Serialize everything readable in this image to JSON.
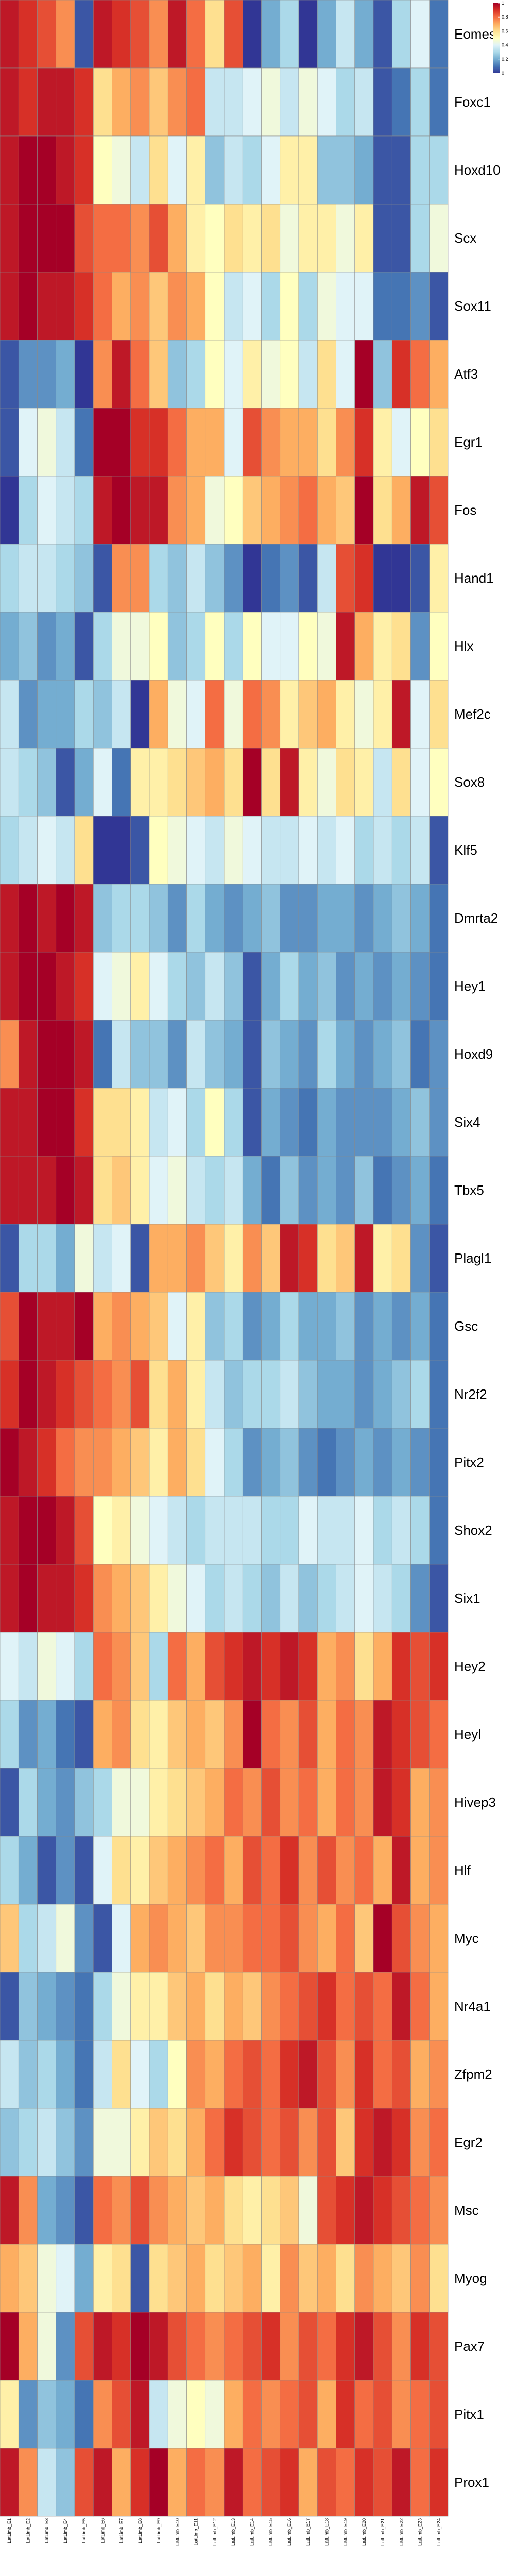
{
  "chart_data": {
    "type": "heatmap",
    "title": "",
    "xlabel": "",
    "ylabel": "",
    "color_scale": {
      "min": 0,
      "max": 1,
      "ticks": [
        0,
        0.2,
        0.4,
        0.6,
        0.8,
        1
      ],
      "colors": [
        "#313695",
        "#4575b4",
        "#74add1",
        "#abd9e9",
        "#e0f3f8",
        "#ffffbf",
        "#fee090",
        "#fdae61",
        "#f46d43",
        "#d73027",
        "#a50026"
      ]
    },
    "columns": [
      "LatLimb_E1",
      "LatLimb_E2",
      "LatLimb_E3",
      "LatLimb_E4",
      "LatLimb_E5",
      "LatLimb_E6",
      "LatLimb_E7",
      "LatLimb_E8",
      "LatLimb_E9",
      "LatLimb_E10",
      "LatLimb_E11",
      "LatLimb_E12",
      "LatLimb_E13",
      "LatLimb_E14",
      "LatLimb_E15",
      "LatLimb_E16",
      "LatLimb_E17",
      "LatLimb_E18",
      "LatLimb_E19",
      "LatLimb_E20",
      "LatLimb_E21",
      "LatLimb_E22",
      "LatLimb_E23",
      "LatLimb_E24"
    ],
    "rows": [
      "Eomes",
      "Foxc1",
      "Hoxd10",
      "Scx",
      "Sox11",
      "Atf3",
      "Egr1",
      "Fos",
      "Hand1",
      "Hlx",
      "Mef2c",
      "Sox8",
      "Klf5",
      "Dmrta2",
      "Hey1",
      "Hoxd9",
      "Six4",
      "Tbx5",
      "Plagl1",
      "Gsc",
      "Nr2f2",
      "Pitx2",
      "Shox2",
      "Six1",
      "Hey2",
      "Heyl",
      "Hivep3",
      "Hlf",
      "Myc",
      "Nr4a1",
      "Zfpm2",
      "Egr2",
      "Msc",
      "Myog",
      "Pax7",
      "Pitx1",
      "Prox1"
    ],
    "values": [
      [
        0.95,
        0.9,
        0.85,
        0.75,
        0.05,
        0.95,
        0.9,
        0.85,
        0.75,
        0.95,
        0.8,
        0.6,
        0.85,
        0.0,
        0.2,
        0.3,
        0.0,
        0.2,
        0.35,
        0.2,
        0.05,
        0.3,
        0.4,
        0.1
      ],
      [
        0.95,
        0.9,
        0.95,
        0.95,
        0.9,
        0.6,
        0.7,
        0.75,
        0.65,
        0.75,
        0.8,
        0.35,
        0.35,
        0.4,
        0.45,
        0.35,
        0.45,
        0.4,
        0.3,
        0.35,
        0.05,
        0.1,
        0.3,
        0.1
      ],
      [
        0.95,
        1.0,
        1.0,
        0.95,
        0.9,
        0.5,
        0.45,
        0.35,
        0.6,
        0.4,
        0.55,
        0.25,
        0.35,
        0.3,
        0.4,
        0.55,
        0.55,
        0.25,
        0.25,
        0.2,
        0.05,
        0.05,
        0.3,
        0.3
      ],
      [
        0.95,
        1.0,
        1.0,
        1.0,
        0.85,
        0.8,
        0.8,
        0.75,
        0.85,
        0.7,
        0.55,
        0.5,
        0.6,
        0.55,
        0.6,
        0.45,
        0.55,
        0.55,
        0.45,
        0.55,
        0.05,
        0.05,
        0.3,
        0.45
      ],
      [
        0.95,
        1.0,
        0.95,
        0.95,
        0.9,
        0.8,
        0.7,
        0.75,
        0.65,
        0.75,
        0.7,
        0.5,
        0.35,
        0.4,
        0.3,
        0.5,
        0.3,
        0.45,
        0.4,
        0.4,
        0.1,
        0.1,
        0.15,
        0.05
      ],
      [
        0.05,
        0.15,
        0.15,
        0.2,
        0.0,
        0.75,
        0.95,
        0.8,
        0.65,
        0.25,
        0.3,
        0.5,
        0.4,
        0.55,
        0.45,
        0.5,
        0.35,
        0.6,
        0.4,
        1.0,
        0.25,
        0.9,
        0.8,
        0.7
      ],
      [
        0.05,
        0.4,
        0.45,
        0.35,
        0.1,
        1.0,
        1.0,
        0.9,
        0.9,
        0.8,
        0.7,
        0.7,
        0.4,
        0.85,
        0.75,
        0.7,
        0.7,
        0.6,
        0.75,
        0.9,
        0.55,
        0.4,
        0.5,
        0.6
      ],
      [
        0.0,
        0.3,
        0.4,
        0.35,
        0.3,
        0.95,
        1.0,
        0.95,
        0.95,
        0.75,
        0.7,
        0.45,
        0.5,
        0.65,
        0.7,
        0.75,
        0.8,
        0.7,
        0.65,
        1.0,
        0.6,
        0.7,
        0.95,
        0.85
      ],
      [
        0.3,
        0.35,
        0.35,
        0.3,
        0.25,
        0.05,
        0.75,
        0.75,
        0.3,
        0.25,
        0.35,
        0.25,
        0.15,
        0.0,
        0.1,
        0.15,
        0.05,
        0.35,
        0.85,
        0.9,
        0.0,
        0.0,
        0.05,
        0.55
      ],
      [
        0.2,
        0.25,
        0.15,
        0.2,
        0.05,
        0.3,
        0.45,
        0.45,
        0.5,
        0.25,
        0.3,
        0.5,
        0.3,
        0.5,
        0.4,
        0.4,
        0.5,
        0.45,
        0.95,
        0.7,
        0.55,
        0.6,
        0.15,
        0.5
      ],
      [
        0.35,
        0.15,
        0.2,
        0.2,
        0.3,
        0.25,
        0.35,
        0.0,
        0.7,
        0.45,
        0.4,
        0.8,
        0.45,
        0.8,
        0.75,
        0.55,
        0.65,
        0.7,
        0.55,
        0.45,
        0.55,
        0.95,
        0.4,
        0.6
      ],
      [
        0.35,
        0.3,
        0.25,
        0.05,
        0.2,
        0.4,
        0.1,
        0.55,
        0.55,
        0.6,
        0.65,
        0.7,
        0.6,
        1.0,
        0.6,
        0.95,
        0.55,
        0.45,
        0.6,
        0.55,
        0.35,
        0.6,
        0.4,
        0.5
      ],
      [
        0.3,
        0.35,
        0.4,
        0.35,
        0.6,
        0.0,
        0.0,
        0.05,
        0.5,
        0.45,
        0.4,
        0.35,
        0.45,
        0.4,
        0.35,
        0.35,
        0.4,
        0.35,
        0.4,
        0.3,
        0.35,
        0.3,
        0.35,
        0.05
      ],
      [
        0.95,
        1.0,
        0.95,
        1.0,
        0.95,
        0.25,
        0.3,
        0.3,
        0.25,
        0.15,
        0.3,
        0.2,
        0.15,
        0.2,
        0.25,
        0.15,
        0.15,
        0.2,
        0.2,
        0.15,
        0.2,
        0.25,
        0.2,
        0.1
      ],
      [
        0.95,
        1.0,
        1.0,
        0.95,
        0.9,
        0.4,
        0.45,
        0.55,
        0.4,
        0.3,
        0.25,
        0.35,
        0.25,
        0.05,
        0.2,
        0.3,
        0.2,
        0.25,
        0.15,
        0.2,
        0.15,
        0.2,
        0.15,
        0.1
      ],
      [
        0.75,
        0.95,
        1.0,
        1.0,
        0.95,
        0.1,
        0.35,
        0.25,
        0.25,
        0.15,
        0.35,
        0.25,
        0.2,
        0.05,
        0.25,
        0.2,
        0.15,
        0.3,
        0.2,
        0.15,
        0.2,
        0.25,
        0.1,
        0.15
      ],
      [
        0.95,
        0.95,
        1.0,
        1.0,
        0.9,
        0.6,
        0.6,
        0.55,
        0.35,
        0.4,
        0.3,
        0.5,
        0.3,
        0.05,
        0.2,
        0.15,
        0.1,
        0.2,
        0.15,
        0.15,
        0.15,
        0.2,
        0.25,
        0.15
      ],
      [
        0.95,
        0.95,
        0.95,
        1.0,
        0.95,
        0.6,
        0.65,
        0.55,
        0.4,
        0.45,
        0.35,
        0.3,
        0.35,
        0.2,
        0.1,
        0.25,
        0.15,
        0.2,
        0.15,
        0.25,
        0.1,
        0.15,
        0.2,
        0.1
      ],
      [
        0.05,
        0.3,
        0.3,
        0.2,
        0.45,
        0.35,
        0.4,
        0.05,
        0.7,
        0.7,
        0.75,
        0.65,
        0.55,
        0.75,
        0.65,
        0.95,
        0.9,
        0.6,
        0.65,
        0.95,
        0.55,
        0.6,
        0.15,
        0.05
      ],
      [
        0.85,
        1.0,
        0.95,
        0.95,
        1.0,
        0.7,
        0.75,
        0.7,
        0.65,
        0.4,
        0.55,
        0.25,
        0.3,
        0.15,
        0.2,
        0.3,
        0.2,
        0.2,
        0.25,
        0.15,
        0.2,
        0.15,
        0.2,
        0.1
      ],
      [
        0.9,
        1.0,
        0.95,
        0.9,
        0.85,
        0.8,
        0.75,
        0.85,
        0.6,
        0.7,
        0.55,
        0.35,
        0.25,
        0.3,
        0.3,
        0.35,
        0.25,
        0.2,
        0.2,
        0.15,
        0.2,
        0.25,
        0.3,
        0.1
      ],
      [
        1.0,
        0.95,
        0.9,
        0.8,
        0.75,
        0.75,
        0.7,
        0.65,
        0.55,
        0.7,
        0.6,
        0.4,
        0.3,
        0.15,
        0.2,
        0.25,
        0.15,
        0.1,
        0.15,
        0.2,
        0.15,
        0.2,
        0.15,
        0.1
      ],
      [
        0.95,
        1.0,
        1.0,
        0.95,
        0.85,
        0.5,
        0.55,
        0.45,
        0.4,
        0.35,
        0.3,
        0.35,
        0.35,
        0.35,
        0.3,
        0.3,
        0.4,
        0.35,
        0.35,
        0.4,
        0.3,
        0.35,
        0.3,
        0.1
      ],
      [
        0.95,
        1.0,
        0.95,
        0.95,
        0.9,
        0.75,
        0.7,
        0.65,
        0.55,
        0.45,
        0.4,
        0.3,
        0.35,
        0.3,
        0.25,
        0.35,
        0.25,
        0.3,
        0.35,
        0.4,
        0.35,
        0.3,
        0.15,
        0.05
      ],
      [
        0.4,
        0.35,
        0.45,
        0.4,
        0.3,
        0.8,
        0.75,
        0.65,
        0.3,
        0.8,
        0.7,
        0.85,
        0.9,
        0.95,
        0.9,
        0.95,
        0.9,
        0.7,
        0.75,
        0.6,
        0.7,
        0.9,
        0.85,
        0.9
      ],
      [
        0.3,
        0.15,
        0.2,
        0.1,
        0.05,
        0.7,
        0.75,
        0.6,
        0.55,
        0.65,
        0.7,
        0.65,
        0.75,
        1.0,
        0.8,
        0.75,
        0.85,
        0.7,
        0.8,
        0.75,
        0.95,
        0.9,
        0.85,
        0.8
      ],
      [
        0.05,
        0.3,
        0.2,
        0.15,
        0.25,
        0.3,
        0.45,
        0.45,
        0.55,
        0.6,
        0.65,
        0.7,
        0.8,
        0.75,
        0.85,
        0.75,
        0.8,
        0.7,
        0.8,
        0.75,
        0.95,
        0.9,
        0.7,
        0.75
      ],
      [
        0.3,
        0.2,
        0.05,
        0.15,
        0.05,
        0.4,
        0.6,
        0.55,
        0.65,
        0.7,
        0.75,
        0.8,
        0.7,
        0.85,
        0.8,
        0.9,
        0.75,
        0.85,
        0.75,
        0.8,
        0.7,
        0.95,
        0.7,
        0.75
      ],
      [
        0.65,
        0.3,
        0.35,
        0.45,
        0.15,
        0.05,
        0.4,
        0.7,
        0.75,
        0.7,
        0.65,
        0.75,
        0.75,
        0.8,
        0.8,
        0.85,
        0.75,
        0.7,
        0.8,
        0.65,
        1.0,
        0.85,
        0.75,
        0.7
      ],
      [
        0.05,
        0.25,
        0.2,
        0.15,
        0.1,
        0.3,
        0.45,
        0.55,
        0.55,
        0.65,
        0.7,
        0.6,
        0.7,
        0.65,
        0.75,
        0.8,
        0.85,
        0.9,
        0.8,
        0.85,
        0.8,
        0.95,
        0.8,
        0.7
      ],
      [
        0.35,
        0.25,
        0.3,
        0.2,
        0.1,
        0.35,
        0.6,
        0.4,
        0.3,
        0.5,
        0.75,
        0.7,
        0.8,
        0.85,
        0.8,
        0.9,
        0.95,
        0.85,
        0.75,
        0.9,
        0.8,
        0.85,
        0.7,
        0.75
      ],
      [
        0.25,
        0.3,
        0.35,
        0.25,
        0.15,
        0.45,
        0.45,
        0.55,
        0.65,
        0.6,
        0.7,
        0.8,
        0.9,
        0.85,
        0.8,
        0.85,
        0.75,
        0.85,
        0.65,
        0.9,
        0.95,
        0.9,
        0.75,
        0.8
      ],
      [
        0.95,
        0.75,
        0.2,
        0.15,
        0.05,
        0.8,
        0.75,
        0.85,
        0.75,
        0.7,
        0.65,
        0.7,
        0.6,
        0.55,
        0.6,
        0.65,
        0.45,
        0.85,
        0.9,
        0.95,
        0.9,
        0.85,
        0.8,
        0.75
      ],
      [
        0.7,
        0.65,
        0.45,
        0.4,
        0.2,
        0.55,
        0.6,
        0.05,
        0.6,
        0.65,
        0.7,
        0.6,
        0.65,
        0.7,
        0.55,
        0.75,
        0.65,
        0.7,
        0.6,
        0.75,
        0.7,
        0.65,
        0.75,
        0.6
      ],
      [
        1.0,
        0.7,
        0.45,
        0.15,
        0.85,
        0.95,
        0.9,
        1.0,
        0.95,
        0.85,
        0.8,
        0.75,
        0.8,
        0.85,
        0.9,
        0.75,
        0.85,
        0.8,
        0.9,
        0.95,
        0.85,
        0.75,
        0.9,
        0.85
      ],
      [
        0.55,
        0.15,
        0.25,
        0.2,
        0.1,
        0.75,
        0.85,
        0.95,
        0.35,
        0.45,
        0.5,
        0.45,
        0.7,
        0.8,
        0.75,
        0.8,
        0.85,
        0.7,
        0.9,
        0.8,
        0.85,
        0.75,
        0.8,
        0.85
      ],
      [
        0.95,
        0.75,
        0.35,
        0.25,
        0.85,
        0.95,
        0.7,
        0.9,
        1.0,
        0.7,
        0.8,
        0.75,
        0.95,
        0.8,
        0.85,
        0.9,
        0.7,
        0.85,
        0.8,
        0.9,
        0.85,
        0.95,
        0.8,
        0.9
      ]
    ]
  }
}
